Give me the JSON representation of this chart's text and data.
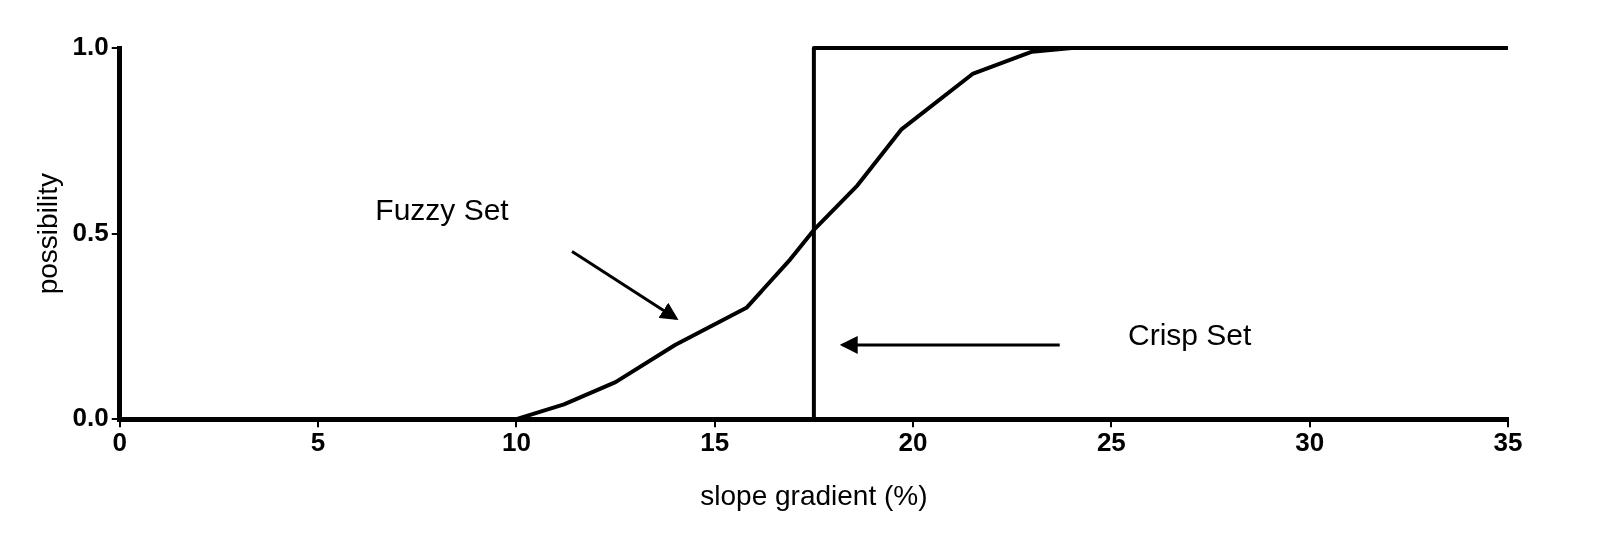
{
  "chart_data": {
    "type": "line",
    "xlabel": "slope gradient (%)",
    "ylabel": "possibility",
    "xlim": [
      0,
      35
    ],
    "ylim": [
      0,
      1
    ],
    "xticks": [
      0,
      5,
      10,
      15,
      20,
      25,
      30,
      35
    ],
    "yticks": [
      {
        "value": 0,
        "label": "0.0"
      },
      {
        "value": 0.5,
        "label": "0.5"
      },
      {
        "value": 1,
        "label": "1.0"
      }
    ],
    "series": [
      {
        "type": "line",
        "color": "#000000",
        "x": [
          0,
          10,
          11.2,
          12.5,
          14,
          15.8,
          16.9,
          17.5,
          18.6,
          19.7,
          21.5,
          23,
          24,
          35
        ],
        "values": [
          0,
          0,
          0.04,
          0.1,
          0.2,
          0.3,
          0.43,
          0.51,
          0.63,
          0.78,
          0.93,
          0.99,
          1,
          1
        ]
      },
      {
        "type": "step",
        "color": "#000000",
        "x": [
          0,
          17.5,
          35
        ],
        "values": [
          0,
          1,
          1
        ]
      }
    ],
    "annotations": [
      "Fuzzy Set",
      "Crisp Set"
    ],
    "grid": false,
    "legend": false,
    "marker": "none",
    "line_style": "solid"
  }
}
